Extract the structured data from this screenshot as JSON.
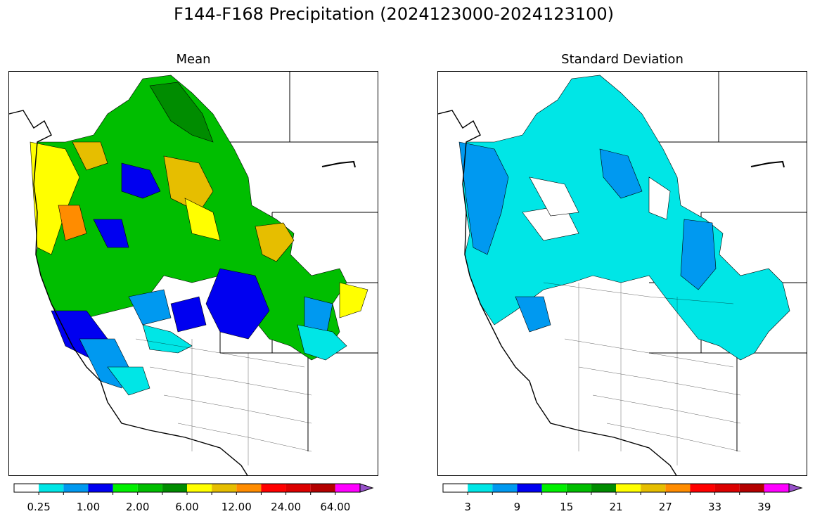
{
  "suptitle": "F144-F168 Precipitation (2024123000-2024123100)",
  "panels": [
    {
      "id": "mean",
      "title": "Mean",
      "colorbar": {
        "colors": [
          "#ffffff",
          "#00e6e6",
          "#0099f0",
          "#0000f0",
          "#00f000",
          "#00be00",
          "#008c00",
          "#ffff00",
          "#e6be00",
          "#ff8c00",
          "#ff0000",
          "#dc0000",
          "#b40000",
          "#ff00ff",
          "#9650c8"
        ],
        "tick_labels": [
          "0.25",
          "1.00",
          "2.00",
          "6.00",
          "12.00",
          "24.00",
          "64.00"
        ],
        "extend": "max"
      }
    },
    {
      "id": "stddev",
      "title": "Standard Deviation",
      "colorbar": {
        "colors": [
          "#ffffff",
          "#00e6e6",
          "#0099f0",
          "#0000f0",
          "#00f000",
          "#00be00",
          "#008c00",
          "#ffff00",
          "#e6be00",
          "#ff8c00",
          "#ff0000",
          "#dc0000",
          "#b40000",
          "#ff00ff",
          "#9650c8"
        ],
        "tick_labels": [
          "3",
          "9",
          "15",
          "21",
          "27",
          "33",
          "39"
        ],
        "extend": "max"
      }
    }
  ]
}
